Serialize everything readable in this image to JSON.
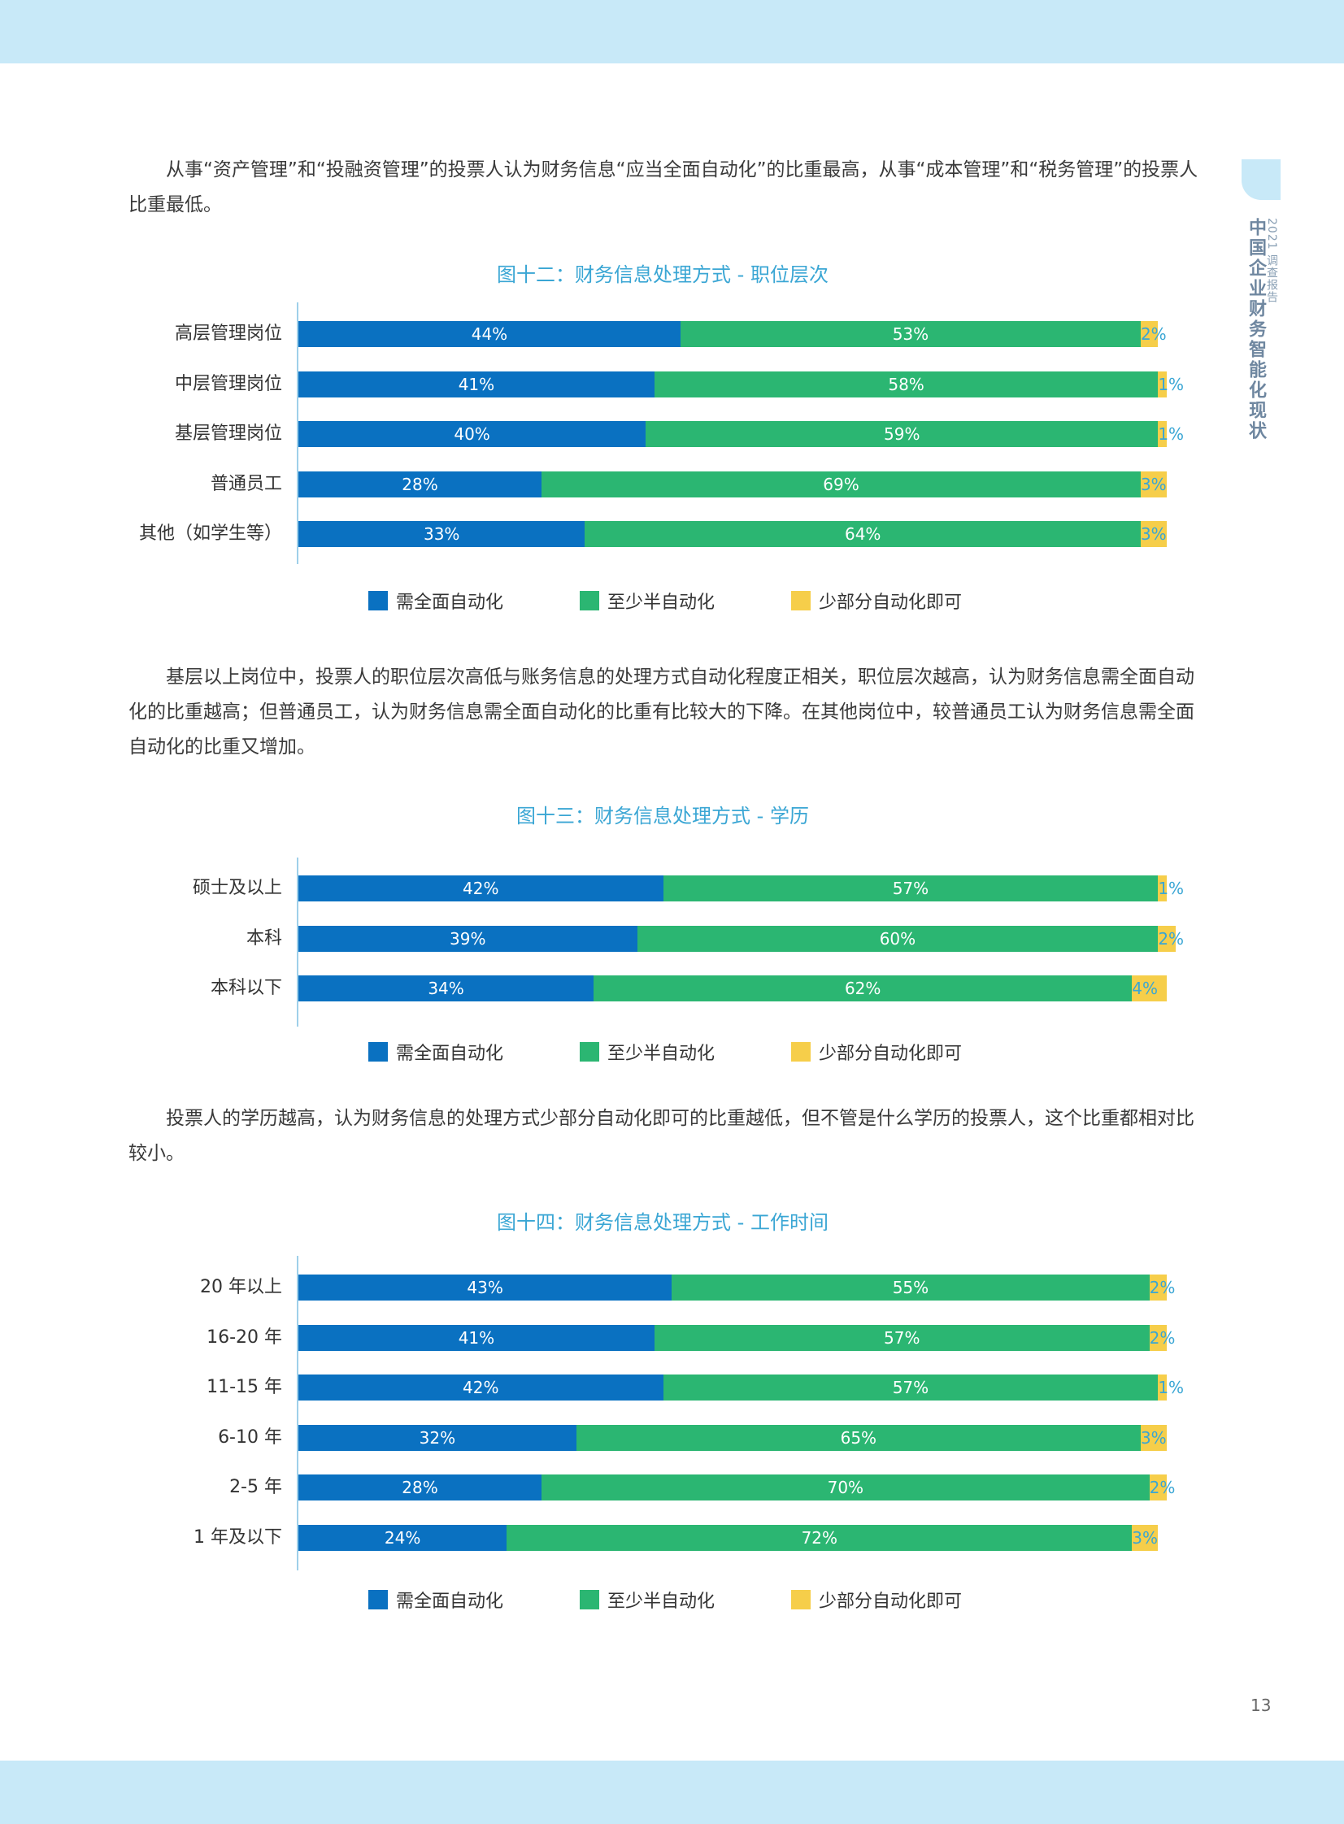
{
  "header": {},
  "side": {
    "report_label": "2021 调查报告",
    "title": "中国企业财务智能化现状"
  },
  "paragraphs": [
    "从事“资产管理”和“投融资管理”的投票人认为财务信息“应当全面自动化”的比重最高，从事“成本管理”和“税务管理”的投票人比重最低。",
    "基层以上岗位中，投票人的职位层次高低与账务信息的处理方式自动化程度正相关，职位层次越高，认为财务信息需全面自动化的比重越高；但普通员工，认为财务信息需全面自动化的比重有比较大的下降。在其他岗位中，较普通员工认为财务信息需全面自动化的比重又增加。",
    "投票人的学历越高，认为财务信息的处理方式少部分自动化即可的比重越低，但不管是什么学历的投票人，这个比重都相对比较小。"
  ],
  "legend": {
    "full": "需全面自动化",
    "half": "至少半自动化",
    "partial": "少部分自动化即可"
  },
  "colors": {
    "full": "#0a71c1",
    "half": "#2bb672",
    "partial": "#f6ce4a",
    "title": "#3aa6d4"
  },
  "page_number": "13",
  "chart_data": [
    {
      "type": "bar",
      "orientation": "horizontal-stacked",
      "title": "图十二：财务信息处理方式 - 职位层次",
      "categories": [
        "高层管理岗位",
        "中层管理岗位",
        "基层管理岗位",
        "普通员工",
        "其他（如学生等）"
      ],
      "series": [
        {
          "name": "需全面自动化",
          "values": [
            44,
            41,
            40,
            28,
            33
          ]
        },
        {
          "name": "至少半自动化",
          "values": [
            53,
            58,
            59,
            69,
            64
          ]
        },
        {
          "name": "少部分自动化即可",
          "values": [
            2,
            1,
            1,
            3,
            3
          ]
        }
      ],
      "labels": [
        [
          "44%",
          "53%",
          "2%"
        ],
        [
          "41%",
          "58%",
          "1%"
        ],
        [
          "40%",
          "59%",
          "1%"
        ],
        [
          "28%",
          "69%",
          "3%"
        ],
        [
          "33%",
          "64%",
          "3%"
        ]
      ],
      "legend_position": "bottom"
    },
    {
      "type": "bar",
      "orientation": "horizontal-stacked",
      "title": "图十三：财务信息处理方式 - 学历",
      "categories": [
        "硕士及以上",
        "本科",
        "本科以下"
      ],
      "series": [
        {
          "name": "需全面自动化",
          "values": [
            42,
            39,
            34
          ]
        },
        {
          "name": "至少半自动化",
          "values": [
            57,
            60,
            62
          ]
        },
        {
          "name": "少部分自动化即可",
          "values": [
            1,
            2,
            4
          ]
        }
      ],
      "labels": [
        [
          "42%",
          "57%",
          "1%"
        ],
        [
          "39%",
          "60%",
          "2%"
        ],
        [
          "34%",
          "62%",
          "4%"
        ]
      ],
      "legend_position": "bottom"
    },
    {
      "type": "bar",
      "orientation": "horizontal-stacked",
      "title": "图十四：财务信息处理方式 - 工作时间",
      "categories": [
        "20 年以上",
        "16-20 年",
        "11-15 年",
        "6-10 年",
        "2-5 年",
        "1 年及以下"
      ],
      "series": [
        {
          "name": "需全面自动化",
          "values": [
            43,
            41,
            42,
            32,
            28,
            24
          ]
        },
        {
          "name": "至少半自动化",
          "values": [
            55,
            57,
            57,
            65,
            70,
            72
          ]
        },
        {
          "name": "少部分自动化即可",
          "values": [
            2,
            2,
            1,
            3,
            2,
            3
          ]
        }
      ],
      "labels": [
        [
          "43%",
          "55%",
          "2%"
        ],
        [
          "41%",
          "57%",
          "2%"
        ],
        [
          "42%",
          "57%",
          "1%"
        ],
        [
          "32%",
          "65%",
          "3%"
        ],
        [
          "28%",
          "70%",
          "2%"
        ],
        [
          "24%",
          "72%",
          "3%"
        ]
      ],
      "legend_position": "bottom"
    }
  ]
}
